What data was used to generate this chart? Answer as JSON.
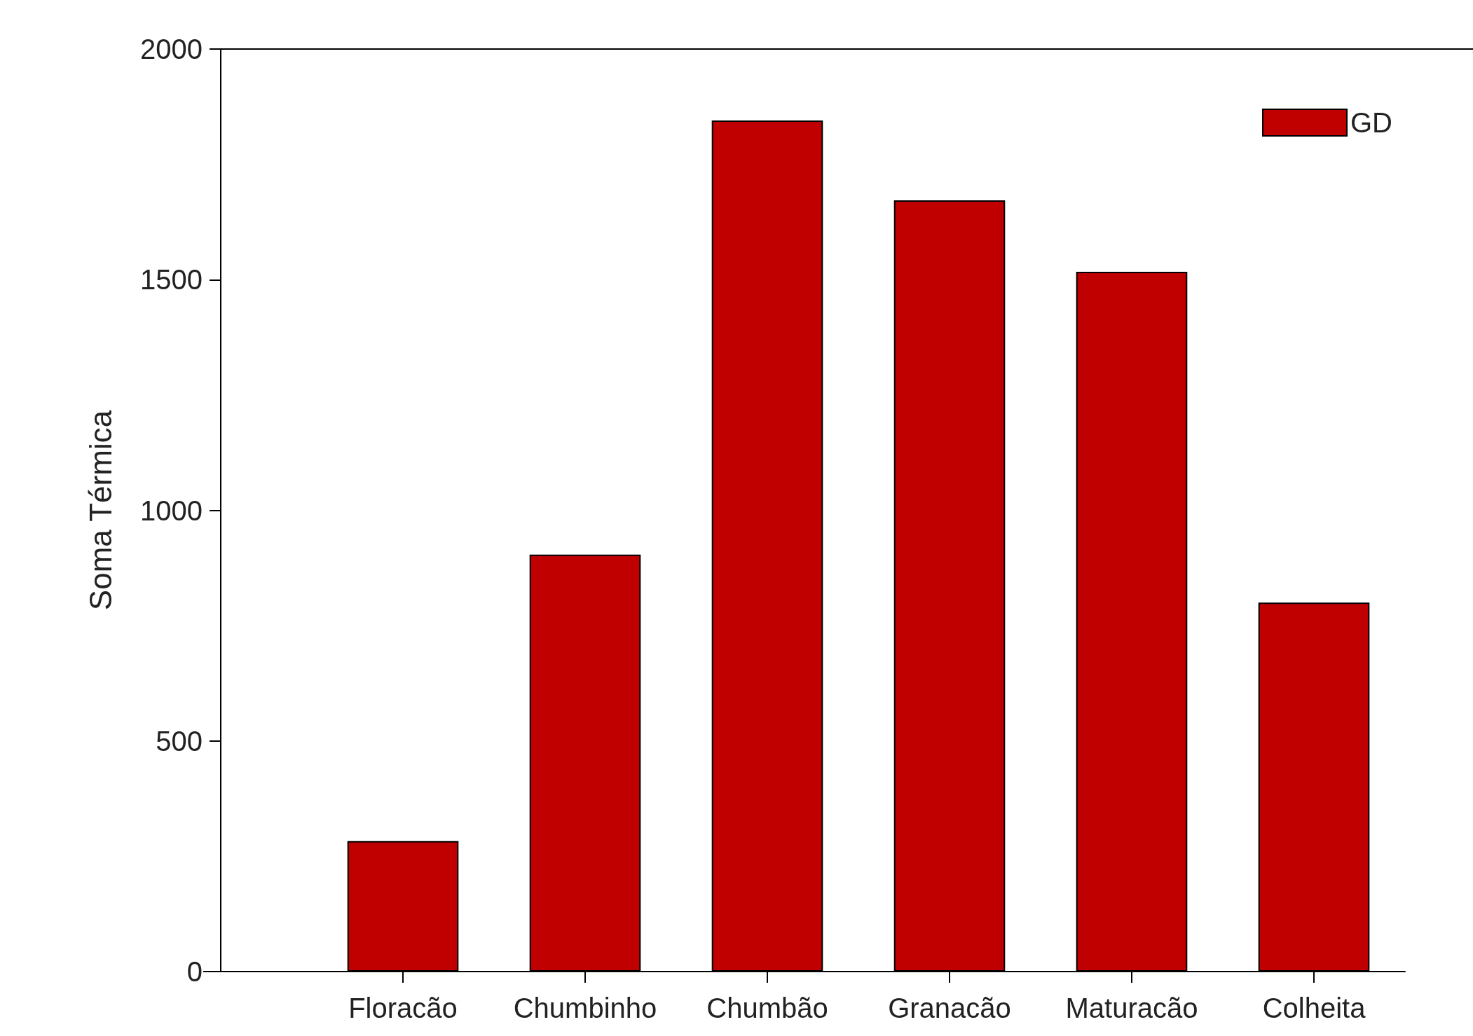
{
  "chart_data": {
    "type": "bar",
    "ylabel": "Soma Térmica",
    "categories": [
      "Floracão",
      "Chumbinho",
      "Chumbão",
      "Granacão",
      "Maturacão",
      "Colheita"
    ],
    "series": [
      {
        "name": "GD",
        "color": "#c00000",
        "values": [
          283,
          904,
          1845,
          1672,
          1517,
          800
        ]
      }
    ],
    "ylim": [
      0,
      2000
    ],
    "yticks": [
      0,
      500,
      1000,
      1500,
      2000
    ],
    "grid": false,
    "legend": "top right"
  }
}
